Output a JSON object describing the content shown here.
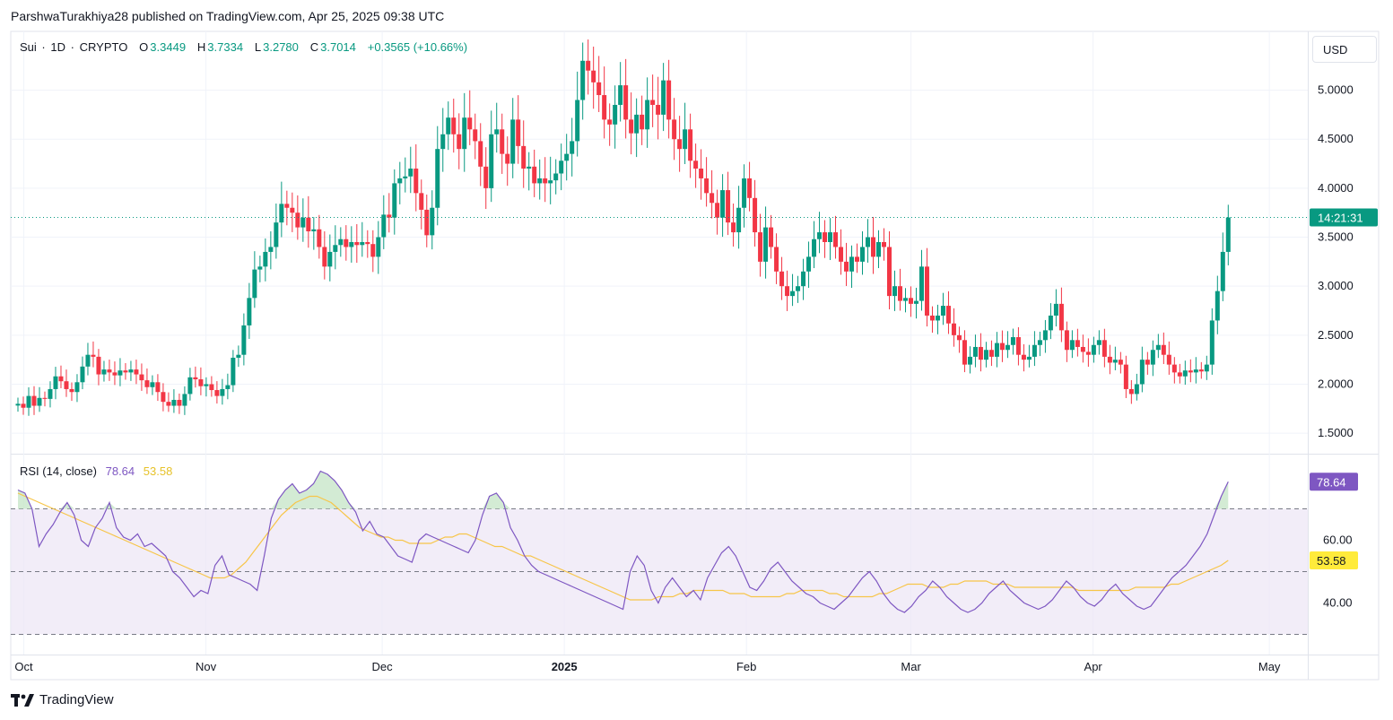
{
  "header": {
    "caption": "ParshwaTurakhiya28 published on TradingView.com, Apr 25, 2025 09:38 UTC"
  },
  "symbol_bar": {
    "symbol": "Sui",
    "interval": "1D",
    "exchange": "CRYPTO",
    "open_label": "O",
    "open": "3.3449",
    "high_label": "H",
    "high": "3.7334",
    "low_label": "L",
    "low": "3.2780",
    "close_label": "C",
    "close": "3.7014",
    "change": "+0.3565 (+10.66%)"
  },
  "currency": "USD",
  "countdown": "14:21:31",
  "rsi_legend": {
    "name": "RSI (14, close)",
    "rsi": "78.64",
    "ma": "53.58"
  },
  "brand": "TradingView",
  "colors": {
    "up": "#089981",
    "down": "#f23645",
    "rsi": "#7e57c2",
    "rsi_ma": "#f7c548",
    "band": "#ede7f6",
    "price_tag": "#089981"
  },
  "chart_data": [
    {
      "type": "candlestick",
      "title": "Sui · 1D · CRYPTO",
      "y_ticks": [
        "1.5000",
        "2.0000",
        "2.5000",
        "3.0000",
        "3.5000",
        "4.0000",
        "4.5000",
        "5.0000"
      ],
      "y_tick_values": [
        1.5,
        2.0,
        2.5,
        3.0,
        3.5,
        4.0,
        4.5,
        5.0
      ],
      "ylim": [
        1.3,
        5.6
      ],
      "x_labels": [
        "Oct",
        "Nov",
        "Dec",
        "2025",
        "Feb",
        "Mar",
        "Apr",
        "May"
      ],
      "x_label_dates": [
        "2024-10-01",
        "2024-11-01",
        "2024-12-01",
        "2025-01-01",
        "2025-02-01",
        "2025-03-01",
        "2025-04-01",
        "2025-05-01"
      ],
      "first_date": "2024-09-30",
      "last_price": 3.7014,
      "closes": [
        1.8,
        1.76,
        1.88,
        1.78,
        1.86,
        1.85,
        1.95,
        2.08,
        2.03,
        1.95,
        1.92,
        2.02,
        2.18,
        2.3,
        2.28,
        2.1,
        2.15,
        2.12,
        2.09,
        2.14,
        2.12,
        2.15,
        2.1,
        2.04,
        1.97,
        2.02,
        1.92,
        1.82,
        1.78,
        1.84,
        1.78,
        1.9,
        2.07,
        2.05,
        1.98,
        2.0,
        1.94,
        1.88,
        1.95,
        1.99,
        2.27,
        2.3,
        2.6,
        2.88,
        3.17,
        3.2,
        3.35,
        3.4,
        3.65,
        3.84,
        3.8,
        3.75,
        3.6,
        3.7,
        3.56,
        3.58,
        3.4,
        3.2,
        3.35,
        3.42,
        3.48,
        3.4,
        3.45,
        3.42,
        3.45,
        3.43,
        3.3,
        3.5,
        3.73,
        3.7,
        4.05,
        4.1,
        4.12,
        4.2,
        3.95,
        3.78,
        3.52,
        3.8,
        4.4,
        4.55,
        4.72,
        4.55,
        4.4,
        4.72,
        4.6,
        4.48,
        4.22,
        4.0,
        4.55,
        4.6,
        4.35,
        4.25,
        4.7,
        4.43,
        4.2,
        4.22,
        4.05,
        4.1,
        4.05,
        4.08,
        4.15,
        4.28,
        4.35,
        4.48,
        4.9,
        5.3,
        5.2,
        5.08,
        4.95,
        4.7,
        4.65,
        4.85,
        5.05,
        4.7,
        4.56,
        4.75,
        4.6,
        4.9,
        4.85,
        4.75,
        5.1,
        4.7,
        4.5,
        4.4,
        4.6,
        4.28,
        4.2,
        4.1,
        3.95,
        3.85,
        3.7,
        3.98,
        3.65,
        3.55,
        3.8,
        4.1,
        3.9,
        3.55,
        3.25,
        3.6,
        3.4,
        3.15,
        3.0,
        2.9,
        2.95,
        3.0,
        3.15,
        3.3,
        3.48,
        3.55,
        3.45,
        3.55,
        3.4,
        3.25,
        3.15,
        3.3,
        3.25,
        3.4,
        3.5,
        3.3,
        3.45,
        3.4,
        2.9,
        3.0,
        2.85,
        2.88,
        2.82,
        2.85,
        3.2,
        2.7,
        2.65,
        2.7,
        2.8,
        2.62,
        2.5,
        2.45,
        2.2,
        2.28,
        2.38,
        2.25,
        2.35,
        2.28,
        2.42,
        2.35,
        2.4,
        2.48,
        2.3,
        2.25,
        2.28,
        2.4,
        2.45,
        2.55,
        2.7,
        2.82,
        2.55,
        2.35,
        2.45,
        2.38,
        2.33,
        2.3,
        2.4,
        2.45,
        2.28,
        2.22,
        2.25,
        2.2,
        1.95,
        1.9,
        2.0,
        2.25,
        2.2,
        2.35,
        2.4,
        2.3,
        2.2,
        2.12,
        2.08,
        2.14,
        2.12,
        2.15,
        2.13,
        2.2,
        2.65,
        2.95,
        3.35,
        3.7014
      ],
      "ohlc_last": {
        "open": 3.3449,
        "high": 3.7334,
        "low": 3.278,
        "close": 3.7014
      }
    },
    {
      "type": "line",
      "title": "RSI (14, close)",
      "y_ticks": [
        "40.00",
        "60.00"
      ],
      "y_tick_values": [
        40,
        60
      ],
      "ylim": [
        25,
        87
      ],
      "band": [
        30,
        70
      ],
      "midline": 50,
      "series": [
        {
          "name": "RSI",
          "last": 78.64
        },
        {
          "name": "MA",
          "last": 53.58
        }
      ],
      "rsi_samples": [
        76,
        75,
        70,
        58,
        62,
        65,
        69,
        72,
        68,
        60,
        58,
        64,
        67,
        72,
        64,
        61,
        60,
        62,
        58,
        59,
        57,
        55,
        50,
        48,
        45,
        42,
        44,
        43,
        52,
        55,
        49,
        48,
        47,
        46,
        44,
        55,
        67,
        73,
        76,
        78,
        75,
        76,
        78,
        82,
        81,
        79,
        76,
        72,
        69,
        63,
        66,
        62,
        61,
        58,
        55,
        54,
        53,
        60,
        62,
        61,
        60,
        59,
        58,
        57,
        56,
        60,
        68,
        74,
        75,
        72,
        64,
        60,
        55,
        52,
        50,
        49,
        48,
        47,
        46,
        45,
        44,
        43,
        42,
        41,
        40,
        39,
        38,
        50,
        55,
        52,
        44,
        40,
        45,
        48,
        45,
        42,
        44,
        41,
        48,
        52,
        56,
        58,
        55,
        50,
        45,
        44,
        47,
        51,
        53,
        50,
        47,
        45,
        43,
        42,
        40,
        39,
        38,
        40,
        42,
        45,
        48,
        50,
        47,
        43,
        40,
        38,
        37,
        39,
        42,
        44,
        47,
        45,
        42,
        40,
        38,
        37,
        38,
        40,
        43,
        45,
        47,
        44,
        42,
        40,
        39,
        38,
        39,
        41,
        44,
        47,
        45,
        42,
        40,
        39,
        41,
        44,
        46,
        43,
        41,
        39,
        38,
        39,
        42,
        45,
        48,
        50,
        52,
        55,
        58,
        62,
        68,
        74,
        78.64
      ],
      "ma_samples": [
        75,
        74,
        73,
        72,
        71,
        70,
        69,
        68,
        67,
        66,
        65,
        64,
        63,
        62,
        61,
        60,
        59,
        58,
        57,
        56,
        55,
        54,
        53,
        52,
        51,
        50,
        49,
        48,
        48,
        48,
        49,
        51,
        53,
        56,
        59,
        62,
        65,
        68,
        70,
        72,
        73,
        74,
        74,
        73,
        72,
        70,
        68,
        66,
        64,
        63,
        62,
        61,
        61,
        60,
        60,
        59,
        59,
        59,
        59,
        60,
        61,
        61,
        62,
        62,
        61,
        60,
        59,
        58,
        58,
        57,
        56,
        55,
        55,
        54,
        53,
        52,
        51,
        50,
        49,
        48,
        47,
        46,
        45,
        44,
        43,
        42,
        41,
        41,
        41,
        41,
        42,
        42,
        42,
        43,
        43,
        44,
        44,
        44,
        44,
        44,
        43,
        43,
        43,
        42,
        42,
        42,
        42,
        42,
        43,
        43,
        44,
        44,
        44,
        44,
        43,
        43,
        42,
        42,
        42,
        42,
        42,
        43,
        43,
        44,
        45,
        46,
        46,
        46,
        45,
        45,
        45,
        46,
        46,
        47,
        47,
        47,
        47,
        46,
        46,
        46,
        45,
        45,
        45,
        45,
        45,
        45,
        45,
        45,
        45,
        44,
        44,
        44,
        44,
        44,
        44,
        44,
        44,
        45,
        45,
        45,
        45,
        45,
        46,
        46,
        47,
        48,
        49,
        50,
        51,
        52,
        53.58
      ]
    }
  ]
}
